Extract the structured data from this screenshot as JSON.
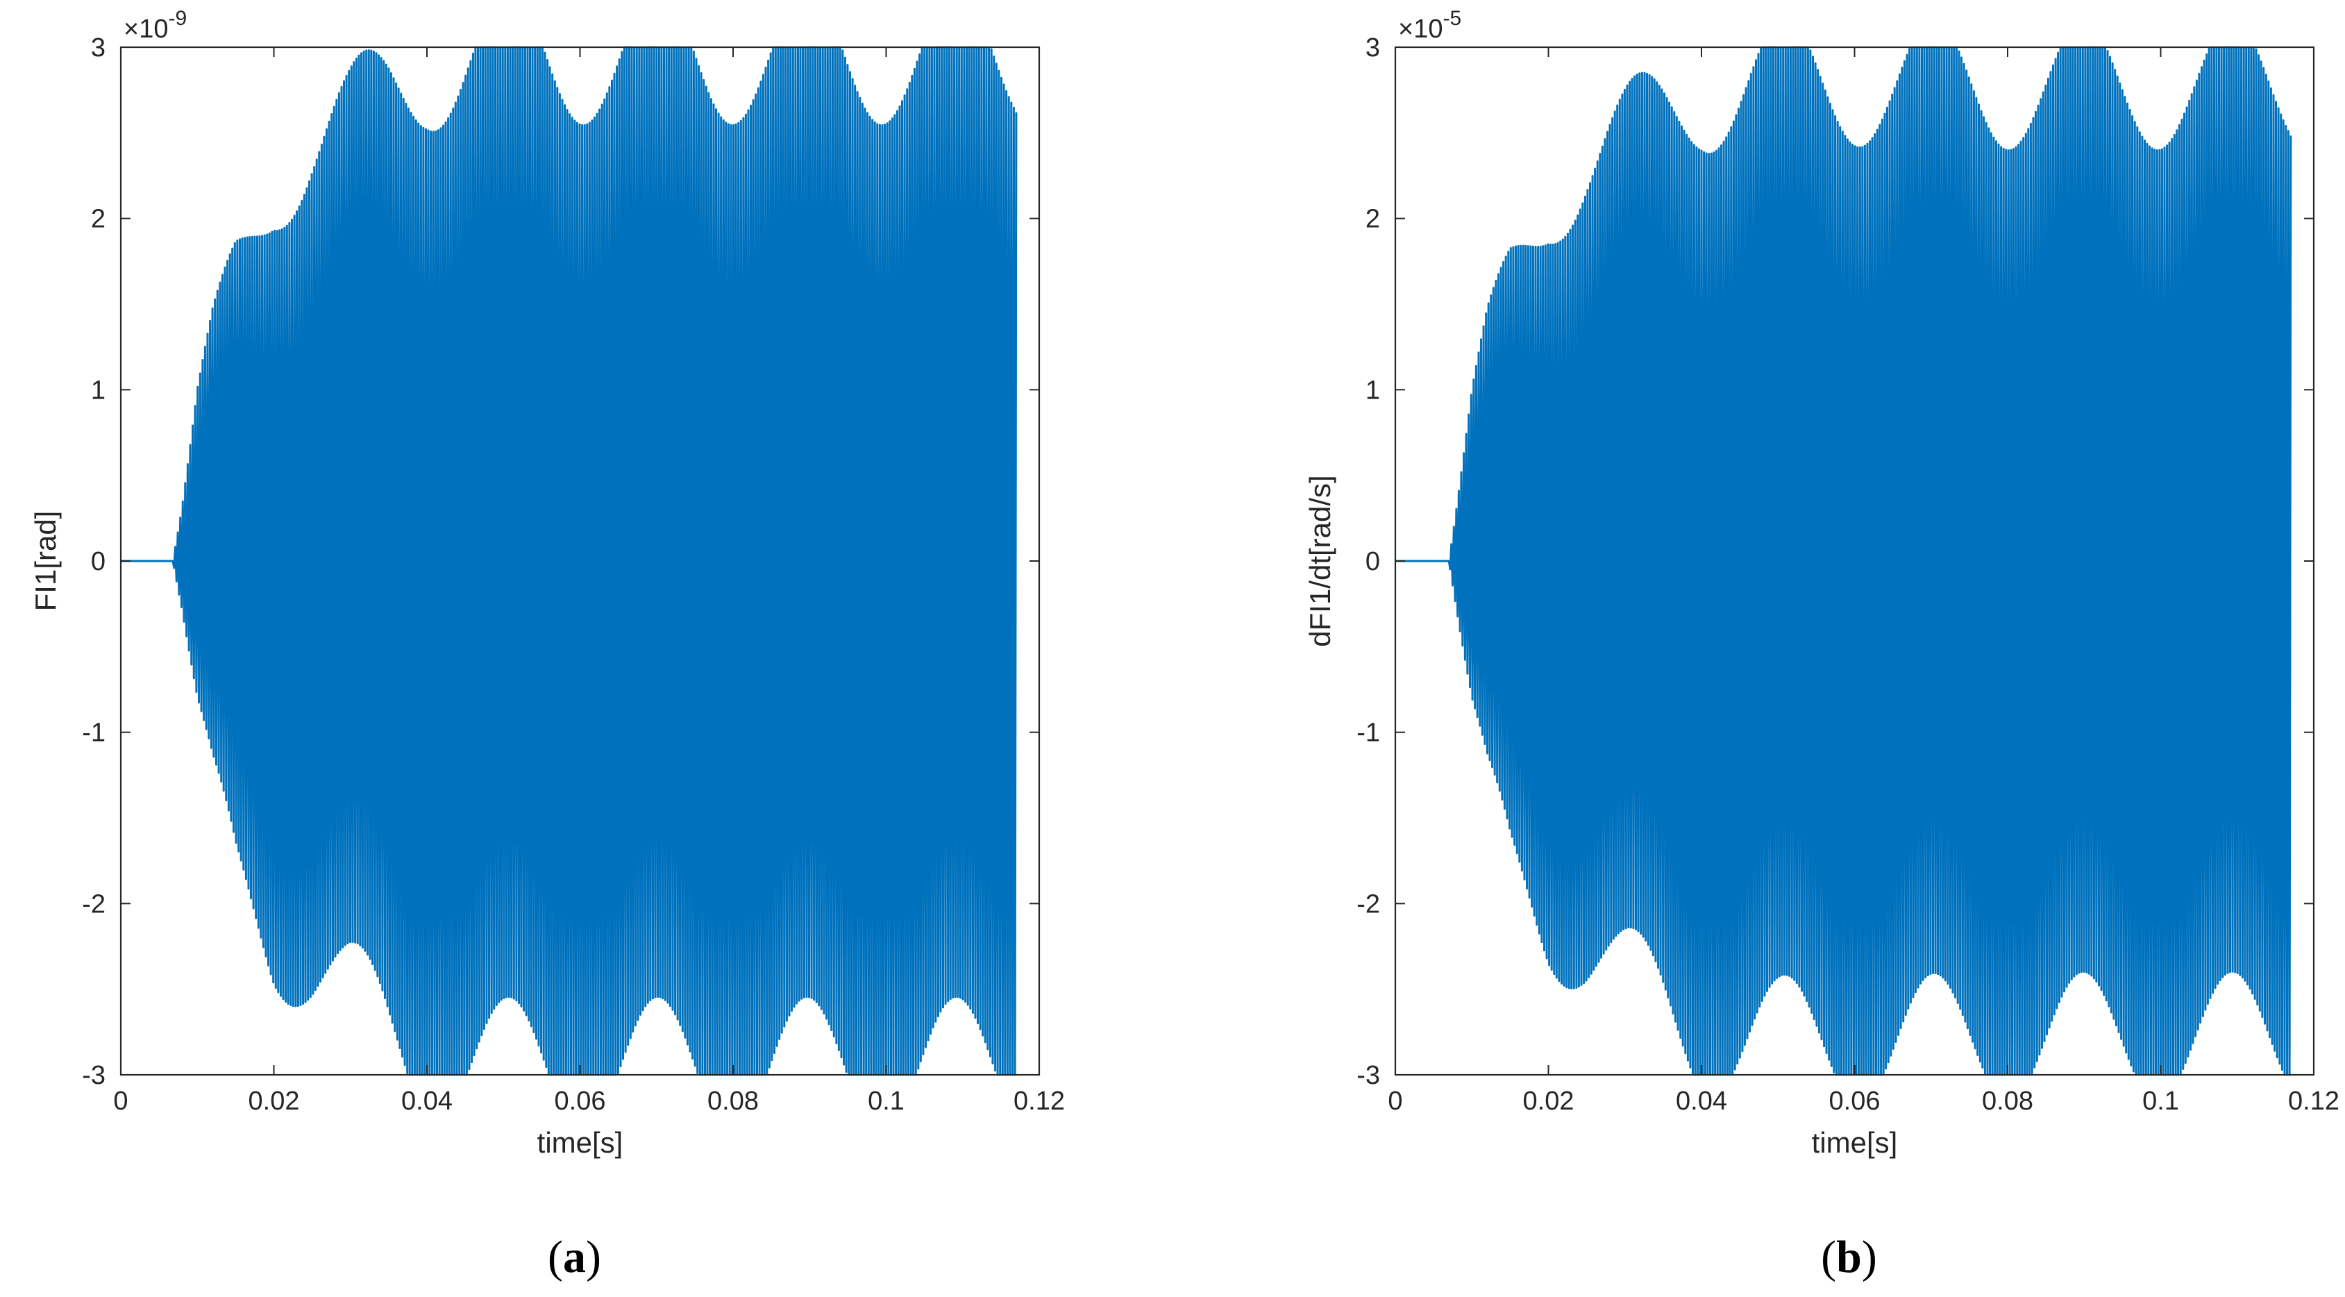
{
  "colors": {
    "line": "#0072BD",
    "axis": "#262626",
    "background": "#ffffff"
  },
  "chart_data": [
    {
      "type": "line",
      "panel_label": "(a)",
      "panel_letter": "a",
      "xlabel": "time[s]",
      "ylabel": "FI1[rad]",
      "y_multiplier": "×10",
      "y_exponent": "-9",
      "xlim": [
        0,
        0.12
      ],
      "ylim": [
        -3,
        3
      ],
      "xticks": [
        0,
        0.02,
        0.04,
        0.06,
        0.08,
        0.1,
        0.12
      ],
      "xtick_labels": [
        "0",
        "0.02",
        "0.04",
        "0.06",
        "0.08",
        "0.1",
        "0.12"
      ],
      "yticks": [
        -3,
        -2,
        -1,
        0,
        1,
        2,
        3
      ],
      "ytick_labels": [
        "-3",
        "-2",
        "-1",
        "0",
        "1",
        "2",
        "3"
      ],
      "signal": {
        "onset_time": 0.0068,
        "end_time": 0.117,
        "envelope": {
          "t": [
            0.0068,
            0.008,
            0.01,
            0.012,
            0.015,
            0.02,
            0.025,
            0.03,
            0.035,
            0.04,
            0.045,
            0.05,
            0.06,
            0.08,
            0.1,
            0.117
          ],
          "amplitude": [
            0.0,
            0.3,
            0.9,
            1.3,
            1.75,
            2.2,
            2.4,
            2.55,
            2.75,
            2.9,
            2.93,
            2.95,
            2.95,
            2.95,
            2.95,
            2.95
          ]
        },
        "beat_period": 0.0195,
        "oscillation_cycles": 340
      }
    },
    {
      "type": "line",
      "panel_label": "(b)",
      "panel_letter": "b",
      "xlabel": "time[s]",
      "ylabel": "dFI1/dt[rad/s]",
      "y_multiplier": "×10",
      "y_exponent": "-5",
      "xlim": [
        0,
        0.12
      ],
      "ylim": [
        -3,
        3
      ],
      "xticks": [
        0,
        0.02,
        0.04,
        0.06,
        0.08,
        0.1,
        0.12
      ],
      "xtick_labels": [
        "0",
        "0.02",
        "0.04",
        "0.06",
        "0.08",
        "0.1",
        "0.12"
      ],
      "yticks": [
        -3,
        -2,
        -1,
        0,
        1,
        2,
        3
      ],
      "ytick_labels": [
        "-3",
        "-2",
        "-1",
        "0",
        "1",
        "2",
        "3"
      ],
      "signal": {
        "onset_time": 0.007,
        "end_time": 0.117,
        "envelope": {
          "t": [
            0.007,
            0.008,
            0.01,
            0.012,
            0.015,
            0.02,
            0.025,
            0.03,
            0.035,
            0.04,
            0.045,
            0.05,
            0.06,
            0.08,
            0.1,
            0.117
          ],
          "amplitude": [
            0.0,
            0.3,
            0.9,
            1.3,
            1.7,
            2.1,
            2.3,
            2.45,
            2.6,
            2.75,
            2.78,
            2.8,
            2.8,
            2.78,
            2.78,
            2.78
          ]
        },
        "beat_period": 0.0195,
        "oscillation_cycles": 340
      }
    }
  ]
}
